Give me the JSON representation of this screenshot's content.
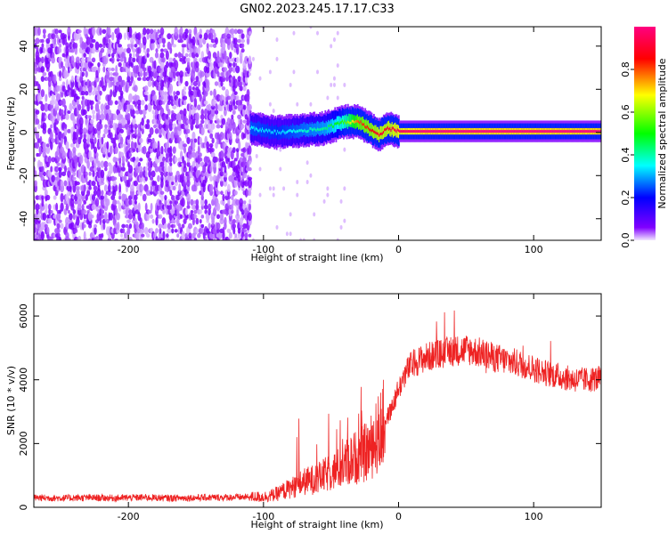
{
  "title": "GN02.2023.245.17.17.C33",
  "chart_data": [
    {
      "type": "heatmap",
      "xlabel": "Height of straight line (km)",
      "ylabel": "Frequency (Hz)",
      "xlim": [
        -270,
        150
      ],
      "ylim": [
        -50,
        49
      ],
      "x_ticks": [
        -200,
        -100,
        0,
        100
      ],
      "x_tick_labels": [
        "-200",
        "-100",
        "0",
        "100"
      ],
      "y_ticks": [
        -40,
        -20,
        0,
        20,
        40
      ],
      "y_tick_labels": [
        "-40",
        "-20",
        "0",
        "20",
        "40"
      ],
      "colorbar": {
        "label": "Normalized spectral amplitude",
        "range": [
          0,
          1
        ],
        "ticks": [
          0,
          0.2,
          0.4,
          0.6,
          0.8
        ],
        "tick_labels": [
          "0.0",
          "0.2",
          "0.4",
          "0.6",
          "0.8"
        ],
        "colors": [
          "#f2e6ff",
          "#8000ff",
          "#0000ff",
          "#00ffff",
          "#00ff00",
          "#ffff00",
          "#ff0000",
          "#ff0080"
        ]
      },
      "noise_region": {
        "x": [
          -270,
          -110
        ],
        "amplitude": 0.1
      },
      "signal_track": [
        {
          "x": -110,
          "freq": 2,
          "amp": 0.35
        },
        {
          "x": -90,
          "freq": 0,
          "amp": 0.32
        },
        {
          "x": -70,
          "freq": 1,
          "amp": 0.38
        },
        {
          "x": -55,
          "freq": 2,
          "amp": 0.42
        },
        {
          "x": -40,
          "freq": 5,
          "amp": 0.55
        },
        {
          "x": -30,
          "freq": 5,
          "amp": 0.8
        },
        {
          "x": -20,
          "freq": 1,
          "amp": 0.85
        },
        {
          "x": -15,
          "freq": -1,
          "amp": 0.9
        },
        {
          "x": -8,
          "freq": 2,
          "amp": 0.9
        },
        {
          "x": 0,
          "freq": 0.5,
          "amp": 0.95
        },
        {
          "x": 20,
          "freq": 0.5,
          "amp": 1.0
        },
        {
          "x": 150,
          "freq": 0.5,
          "amp": 1.0
        }
      ]
    },
    {
      "type": "line",
      "xlabel": "Height of straight line (km)",
      "ylabel": "SNR (10 * v/v)",
      "xlim": [
        -270,
        150
      ],
      "ylim": [
        0,
        6700
      ],
      "x_ticks": [
        -200,
        -100,
        0,
        100
      ],
      "x_tick_labels": [
        "-200",
        "-100",
        "0",
        "100"
      ],
      "y_ticks": [
        0,
        2000,
        4000,
        6000
      ],
      "y_tick_labels": [
        "0",
        "2000",
        "4000",
        "6000"
      ],
      "color": "#ee2222",
      "series": [
        {
          "x": [
            -270,
            -250,
            -230,
            -210,
            -190,
            -170,
            -150,
            -130,
            -110,
            -100,
            -95,
            -90,
            -85,
            -80,
            -75,
            -70,
            -65,
            -60,
            -55,
            -50,
            -45,
            -40,
            -35,
            -30,
            -25,
            -20,
            -15,
            -10,
            -5,
            0,
            5,
            10,
            15,
            20,
            25,
            30,
            40,
            50,
            60,
            70,
            80,
            90,
            100,
            110,
            120,
            130,
            140,
            150
          ],
          "y": [
            300,
            290,
            300,
            290,
            310,
            290,
            300,
            310,
            320,
            330,
            360,
            420,
            520,
            600,
            700,
            800,
            850,
            900,
            1000,
            1100,
            1200,
            1350,
            1500,
            1600,
            1700,
            1900,
            2300,
            2700,
            3100,
            3700,
            4200,
            4500,
            4600,
            4700,
            4750,
            4800,
            4900,
            4950,
            4850,
            4700,
            4600,
            4500,
            4350,
            4200,
            4100,
            4000,
            4000,
            4050
          ]
        }
      ]
    }
  ]
}
